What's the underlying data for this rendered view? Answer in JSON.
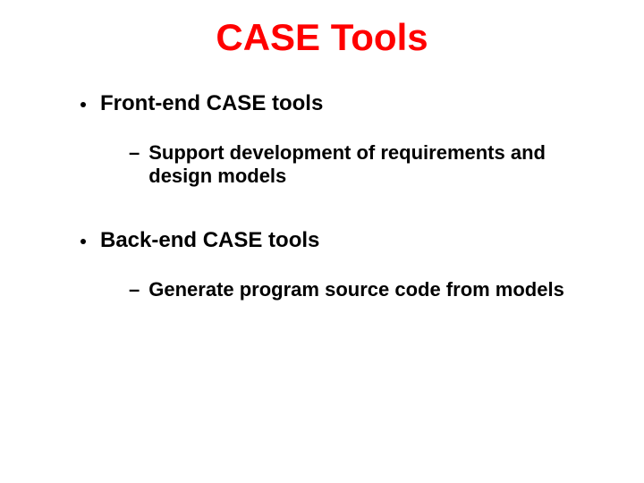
{
  "title": {
    "text": "CASE Tools",
    "color": "#ff0000",
    "fontsize": 42
  },
  "body": {
    "color": "#000000",
    "l1_fontsize": 24,
    "l2_fontsize": 22
  },
  "bullets": [
    {
      "level": 1,
      "text": "Front-end CASE tools"
    },
    {
      "level": 2,
      "text": "Support development of requirements and design models"
    },
    {
      "level": 1,
      "text": "Back-end CASE tools"
    },
    {
      "level": 2,
      "text": "Generate program source code from models"
    }
  ]
}
